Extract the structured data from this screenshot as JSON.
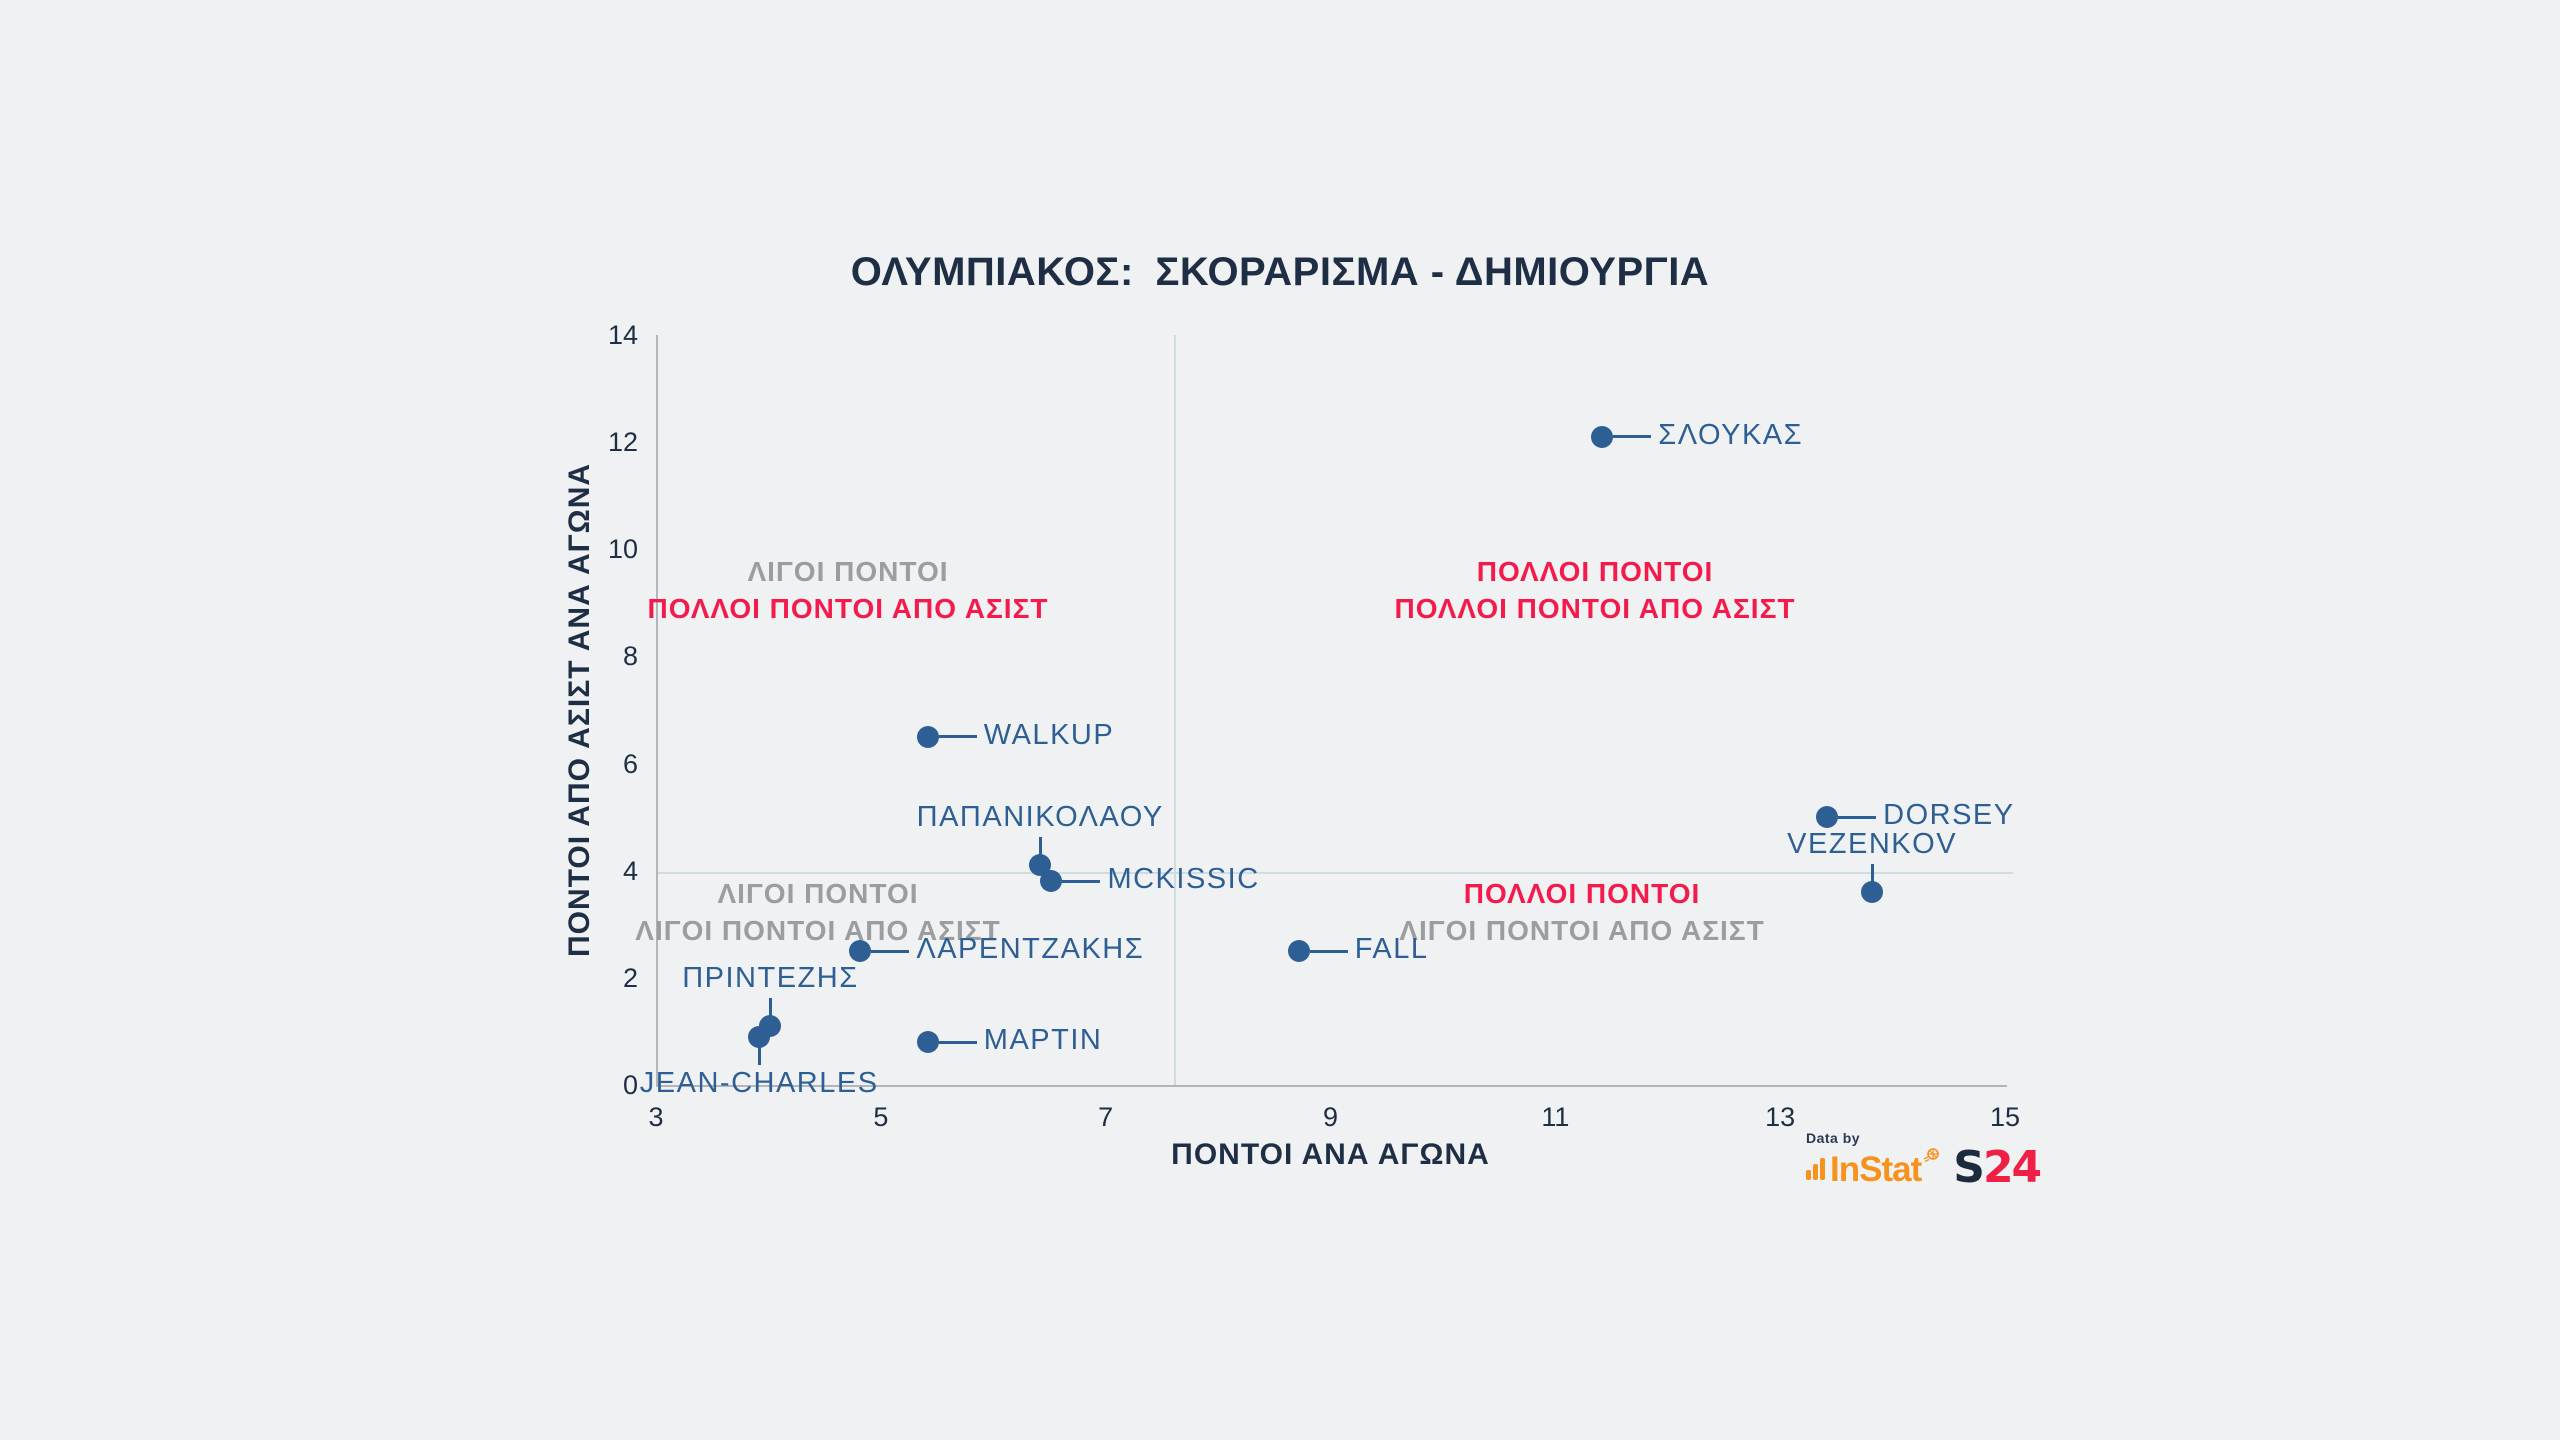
{
  "title": {
    "bold": "ΟΛΥΜΠΙΑΚΟΣ:",
    "rest": "ΣΚΟΡΑΡΙΣΜΑ - ΔΗΜΙΟΥΡΓΙΑ"
  },
  "quadrants": {
    "top_left": {
      "line1": "ΛΙΓΟΙ ΠΟΝΤΟΙ",
      "line2": "ΠΟΛΛΟΙ ΠΟΝΤΟΙ ΑΠΟ ΑΣΙΣΤ"
    },
    "top_right": {
      "line1": "ΠΟΛΛΟΙ ΠΟΝΤΟΙ",
      "line2": "ΠΟΛΛΟΙ ΠΟΝΤΟΙ ΑΠΟ ΑΣΙΣΤ"
    },
    "bottom_left": {
      "line1": "ΛΙΓΟΙ ΠΟΝΤΟΙ",
      "line2": "ΛΙΓΟΙ ΠΟΝΤΟΙ ΑΠΟ ΑΣΙΣΤ"
    },
    "bottom_right": {
      "line1": "ΠΟΛΛΟΙ ΠΟΝΤΟΙ",
      "line2": "ΛΙΓΟΙ ΠΟΝΤΟΙ ΑΠΟ ΑΣΙΣΤ"
    }
  },
  "footer": {
    "data_by": "Data by",
    "instat": "InStat",
    "s24_s": "S",
    "s24_24": "24"
  },
  "colors": {
    "background": "#f0f1f2",
    "navy": "#1e2f45",
    "point_blue": "#2e5f94",
    "quadrant_gray": "#9b9da0",
    "quadrant_red": "#f31b4c",
    "divider_line": "#cfdde0",
    "axis_line": "#b3b6b9",
    "instat_orange": "#f6921e",
    "s24_navy": "#1d2b3e",
    "s24_red": "#ee2046"
  },
  "chart_data": {
    "type": "scatter",
    "title": "ΟΛΥΜΠΙΑΚΟΣ: ΣΚΟΡΑΡΙΣΜΑ - ΔΗΜΙΟΥΡΓΙΑ",
    "xlabel": "ΠΟΝΤΟΙ ΑΝΑ ΑΓΩΝΑ",
    "ylabel": "ΠΟΝΤΟΙ ΑΠΟ ΑΣΙΣΤ ΑΝΑ ΑΓΩΝΑ",
    "xlim": [
      3,
      15
    ],
    "ylim": [
      0,
      14
    ],
    "x_ticks": [
      3,
      5,
      7,
      9,
      11,
      13,
      15
    ],
    "y_ticks": [
      0,
      2,
      4,
      6,
      8,
      10,
      12,
      14
    ],
    "grid": false,
    "dividers": {
      "x": 7.6,
      "y": 3.95
    },
    "points": [
      {
        "name": "ΣΛΟΥΚΑΣ",
        "x": 11.4,
        "y": 12.1,
        "label_side": "right"
      },
      {
        "name": "WALKUP",
        "x": 5.4,
        "y": 6.5,
        "label_side": "right"
      },
      {
        "name": "ΠΑΠΑΝΙΚΟΛΑΟΥ",
        "x": 6.4,
        "y": 4.1,
        "label_side": "above"
      },
      {
        "name": "MCKISSIC",
        "x": 6.5,
        "y": 3.8,
        "label_side": "right"
      },
      {
        "name": "DORSEY",
        "x": 13.4,
        "y": 5.0,
        "label_side": "right"
      },
      {
        "name": "VEZENKOV",
        "x": 13.8,
        "y": 3.6,
        "label_side": "above"
      },
      {
        "name": "ΛΑΡΕΝΤΖΑΚΗΣ",
        "x": 4.8,
        "y": 2.5,
        "label_side": "right"
      },
      {
        "name": "FALL",
        "x": 8.7,
        "y": 2.5,
        "label_side": "right"
      },
      {
        "name": "ΠΡΙΝΤΕΖΗΣ",
        "x": 4.0,
        "y": 1.1,
        "label_side": "above"
      },
      {
        "name": "JEAN-CHARLES",
        "x": 3.9,
        "y": 0.9,
        "label_side": "below"
      },
      {
        "name": "ΜΑΡΤΙΝ",
        "x": 5.4,
        "y": 0.8,
        "label_side": "right"
      }
    ]
  }
}
